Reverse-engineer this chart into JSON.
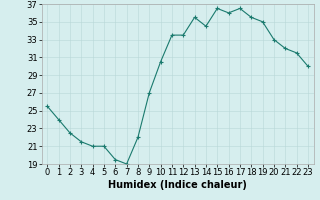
{
  "x": [
    0,
    1,
    2,
    3,
    4,
    5,
    6,
    7,
    8,
    9,
    10,
    11,
    12,
    13,
    14,
    15,
    16,
    17,
    18,
    19,
    20,
    21,
    22,
    23
  ],
  "y": [
    25.5,
    24.0,
    22.5,
    21.5,
    21.0,
    21.0,
    19.5,
    19.0,
    22.0,
    27.0,
    30.5,
    33.5,
    33.5,
    35.5,
    34.5,
    36.5,
    36.0,
    36.5,
    35.5,
    35.0,
    33.0,
    32.0,
    31.5,
    30.0
  ],
  "line_color": "#1a7a6e",
  "marker": "+",
  "marker_size": 3,
  "bg_color": "#d6eeee",
  "grid_color": "#b8d8d8",
  "xlabel": "Humidex (Indice chaleur)",
  "ylim": [
    19,
    37
  ],
  "xlim": [
    -0.5,
    23.5
  ],
  "yticks": [
    19,
    21,
    23,
    25,
    27,
    29,
    31,
    33,
    35,
    37
  ],
  "xtick_labels": [
    "0",
    "1",
    "2",
    "3",
    "4",
    "5",
    "6",
    "7",
    "8",
    "9",
    "10",
    "11",
    "12",
    "13",
    "14",
    "15",
    "16",
    "17",
    "18",
    "19",
    "20",
    "21",
    "22",
    "23"
  ],
  "label_fontsize": 7,
  "tick_fontsize": 6
}
